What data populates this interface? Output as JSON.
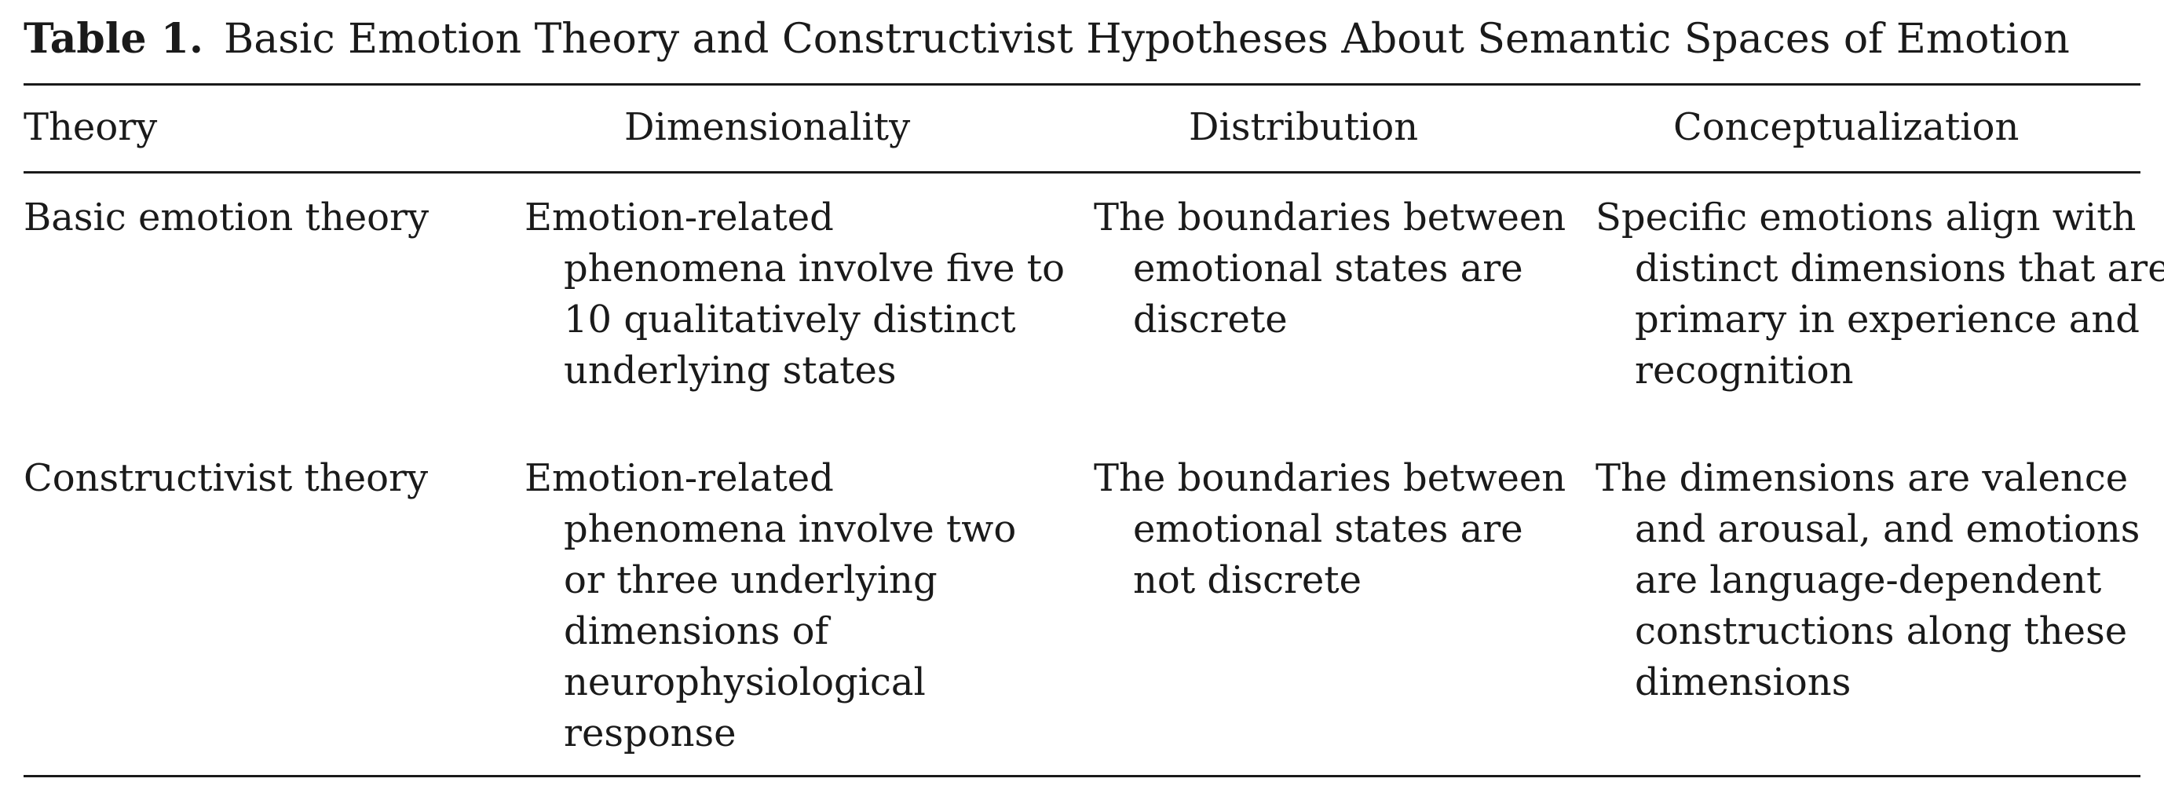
{
  "caption": {
    "label": "Table 1.",
    "title": "Basic Emotion Theory and Constructivist Hypotheses About Semantic Spaces of Emotion"
  },
  "table": {
    "headers": {
      "theory": "Theory",
      "dimensionality": "Dimensionality",
      "distribution": "Distribution",
      "conceptualization": "Conceptualization"
    },
    "rows": [
      {
        "theory": "Basic emotion theory",
        "dimensionality": "Emotion-related phenomena involve five to 10 qualitatively distinct underlying states",
        "distribution": "The boundaries between emotional states are discrete",
        "conceptualization": "Specific emotions align with distinct dimensions that are primary in experience and recognition"
      },
      {
        "theory": "Constructivist theory",
        "dimensionality": "Emotion-related phenomena involve two or three underlying dimensions of neurophysiological response",
        "distribution": "The boundaries between emotional states are not discrete",
        "conceptualization": "The dimensions are valence and arousal, and emotions are language-dependent constructions along these dimensions"
      }
    ]
  }
}
